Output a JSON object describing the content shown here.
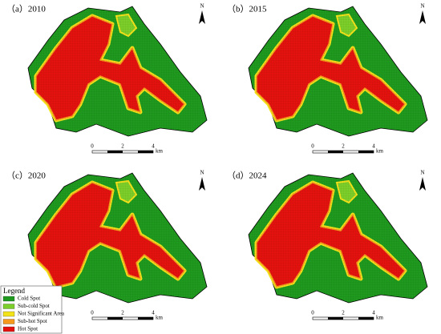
{
  "panels": [
    {
      "label": "（a）2010"
    },
    {
      "label": "（b）2015"
    },
    {
      "label": "（c）2020"
    },
    {
      "label": "（d）2024"
    }
  ],
  "north_label": "N",
  "scale": {
    "ticks": [
      0,
      2,
      4
    ],
    "unit": "km"
  },
  "legend": {
    "title": "Legend",
    "items": [
      {
        "label": "Cold Spot",
        "color": "#1f9a1f"
      },
      {
        "label": "Sub-cold Spot",
        "color": "#7ccf2a"
      },
      {
        "label": "Not Significant Area",
        "color": "#f2e21a"
      },
      {
        "label": "Sub-hot Spot",
        "color": "#f59a1c"
      },
      {
        "label": "Hot Spot",
        "color": "#e3120f"
      }
    ]
  }
}
